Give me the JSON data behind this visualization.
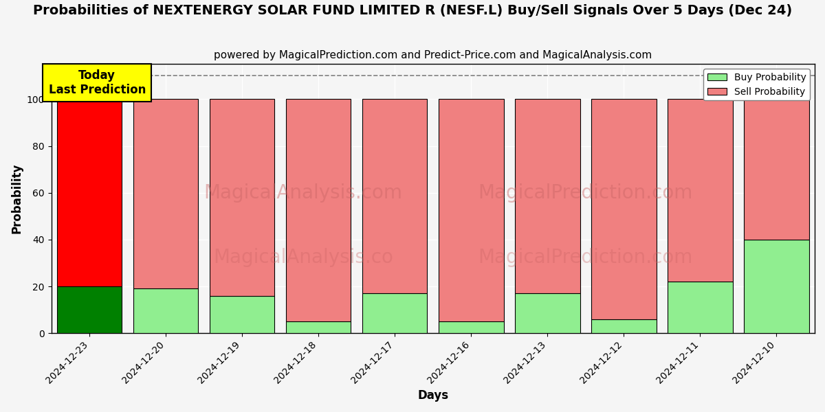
{
  "title": "Probabilities of NEXTENERGY SOLAR FUND LIMITED R (NESF.L) Buy/Sell Signals Over 5 Days (Dec 24)",
  "subtitle": "powered by MagicalPrediction.com and Predict-Price.com and MagicalAnalysis.com",
  "xlabel": "Days",
  "ylabel": "Probability",
  "categories": [
    "2024-12-23",
    "2024-12-20",
    "2024-12-19",
    "2024-12-18",
    "2024-12-17",
    "2024-12-16",
    "2024-12-13",
    "2024-12-12",
    "2024-12-11",
    "2024-12-10"
  ],
  "buy_values": [
    20,
    19,
    16,
    5,
    17,
    5,
    17,
    6,
    22,
    40
  ],
  "sell_values": [
    80,
    81,
    84,
    95,
    83,
    95,
    83,
    94,
    78,
    60
  ],
  "buy_color_today": "#008000",
  "sell_color_today": "#ff0000",
  "buy_color_other": "#90EE90",
  "sell_color_other": "#F08080",
  "bar_edge_color": "#000000",
  "ylim": [
    0,
    115
  ],
  "yticks": [
    0,
    20,
    40,
    60,
    80,
    100
  ],
  "dashed_line_y": 110,
  "today_label": "Today\nLast Prediction",
  "legend_buy": "Buy Probability",
  "legend_sell": "Sell Probability",
  "title_fontsize": 14,
  "subtitle_fontsize": 11,
  "axis_label_fontsize": 12,
  "tick_fontsize": 10,
  "bar_width": 0.85,
  "bg_color": "#f5f5f5",
  "plot_bg_color": "#f5f5f5"
}
